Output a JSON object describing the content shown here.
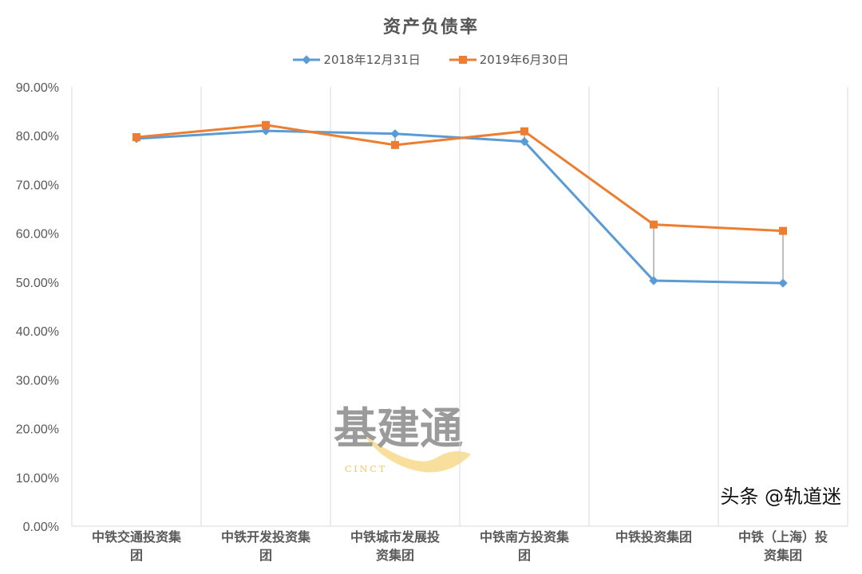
{
  "chart_data": {
    "type": "line",
    "title": "资产负债率",
    "categories": [
      "中铁交通投资集团",
      "中铁开发投资集团",
      "中铁城市发展投资集团",
      "中铁南方投资集团",
      "中铁投资集团",
      "中铁（上海）投资集团"
    ],
    "series": [
      {
        "name": "2018年12月31日",
        "color": "#5B9BD5",
        "marker": "diamond",
        "values": [
          79.4,
          81.0,
          80.4,
          78.8,
          50.3,
          49.8
        ]
      },
      {
        "name": "2019年6月30日",
        "color": "#ED7D31",
        "marker": "square",
        "values": [
          79.7,
          82.2,
          78.1,
          80.9,
          61.8,
          60.5
        ]
      }
    ],
    "ylim": [
      0,
      90
    ],
    "yticks": [
      "0.00%",
      "10.00%",
      "20.00%",
      "30.00%",
      "40.00%",
      "50.00%",
      "60.00%",
      "70.00%",
      "80.00%",
      "90.00%"
    ],
    "grid": "vertical",
    "legend": "top",
    "high_low_lines": true
  },
  "watermark": {
    "logo_text": "基建通",
    "logo_sub": "CINCT",
    "caption": "头条 @轨道迷"
  }
}
